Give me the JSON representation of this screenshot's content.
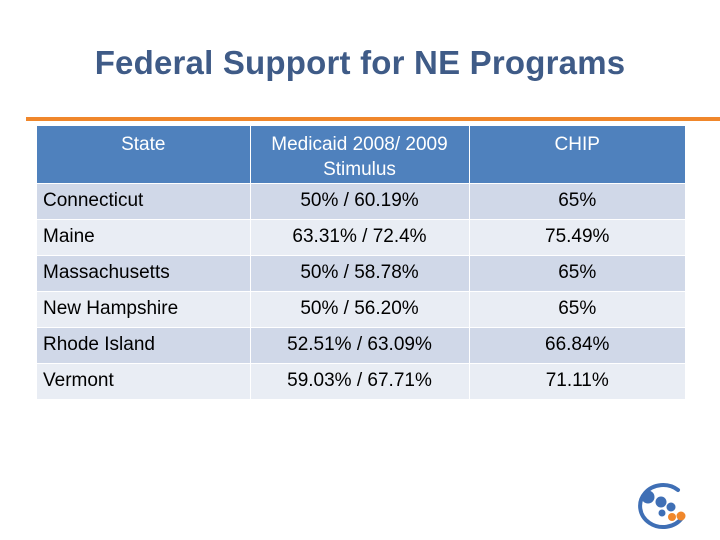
{
  "slide": {
    "title": "Federal Support for NE Programs"
  },
  "table": {
    "headers": [
      "State",
      "Medicaid 2008/ 2009 Stimulus",
      "CHIP"
    ],
    "rows": [
      [
        "Connecticut",
        "50% / 60.19%",
        "65%"
      ],
      [
        "Maine",
        "63.31% / 72.4%",
        "75.49%"
      ],
      [
        "Massachusetts",
        "50% / 58.78%",
        "65%"
      ],
      [
        "New Hampshire",
        "50% / 56.20%",
        "65%"
      ],
      [
        "Rhode Island",
        "52.51% / 63.09%",
        "66.84%"
      ],
      [
        "Vermont",
        "59.03% / 67.71%",
        "71.11%"
      ]
    ]
  },
  "logo": {
    "icon": "dots-circle-logo",
    "colors": {
      "ring": "#3f6fb5",
      "blue": "#3f6fb5",
      "orange": "#f0872b"
    }
  }
}
